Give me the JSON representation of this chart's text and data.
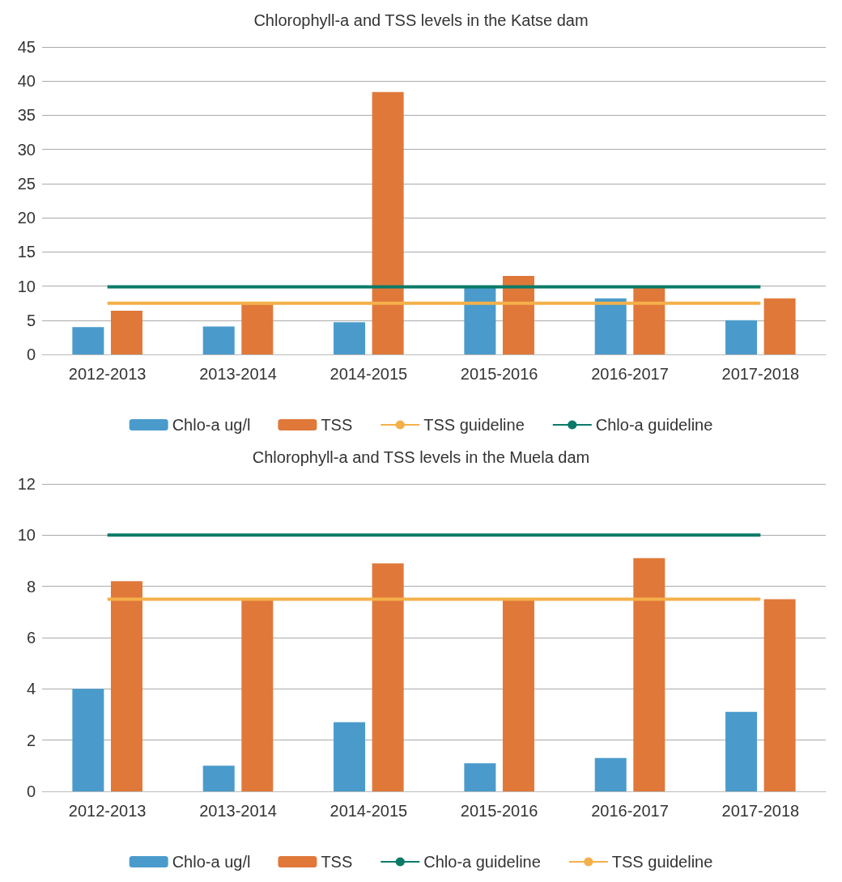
{
  "chart_data": [
    {
      "type": "bar",
      "title": "Chlorophyll-a and TSS levels in the Katse dam",
      "categories": [
        "2012-2013",
        "2013-2014",
        "2014-2015",
        "2015-2016",
        "2016-2017",
        "2017-2018"
      ],
      "ylim": [
        0,
        45
      ],
      "yticks": [
        0,
        5,
        10,
        15,
        20,
        25,
        30,
        35,
        40,
        45
      ],
      "grid": "y",
      "legend": "bottom",
      "marker": "none",
      "series": [
        {
          "name": "Chlo-a ug/l",
          "color": "#4a9bcb",
          "values": [
            4.0,
            4.1,
            4.7,
            10.0,
            8.2,
            5.0
          ]
        },
        {
          "name": "TSS",
          "color": "#e07839",
          "values": [
            6.4,
            7.3,
            38.4,
            11.5,
            9.9,
            8.2
          ]
        },
        {
          "name": "TSS guideline",
          "type": "line",
          "color": "#f4b04a",
          "values": [
            7.5,
            7.5,
            7.5,
            7.5,
            7.5,
            7.5
          ]
        },
        {
          "name": "Chlo-a guideline",
          "type": "line",
          "color": "#0a7a68",
          "values": [
            9.9,
            9.9,
            9.9,
            9.9,
            9.9,
            9.9
          ]
        }
      ]
    },
    {
      "type": "bar",
      "title": "Chlorophyll-a and TSS levels in the Muela dam",
      "categories": [
        "2012-2013",
        "2013-2014",
        "2014-2015",
        "2015-2016",
        "2016-2017",
        "2017-2018"
      ],
      "ylim": [
        0,
        12
      ],
      "yticks": [
        0,
        2,
        4,
        6,
        8,
        10,
        12
      ],
      "grid": "y",
      "legend": "bottom",
      "marker": "none",
      "series": [
        {
          "name": "Chlo-a ug/l",
          "color": "#4a9bcb",
          "values": [
            4.0,
            1.0,
            2.7,
            1.1,
            1.3,
            3.1
          ]
        },
        {
          "name": "TSS",
          "color": "#e07839",
          "values": [
            8.2,
            7.5,
            8.9,
            7.5,
            9.1,
            7.5
          ]
        },
        {
          "name": "Chlo-a guideline",
          "type": "line",
          "color": "#0a7a68",
          "values": [
            10,
            10,
            10,
            10,
            10,
            10
          ]
        },
        {
          "name": "TSS guideline",
          "type": "line",
          "color": "#f4b04a",
          "values": [
            7.5,
            7.5,
            7.5,
            7.5,
            7.5,
            7.5
          ]
        }
      ]
    }
  ]
}
